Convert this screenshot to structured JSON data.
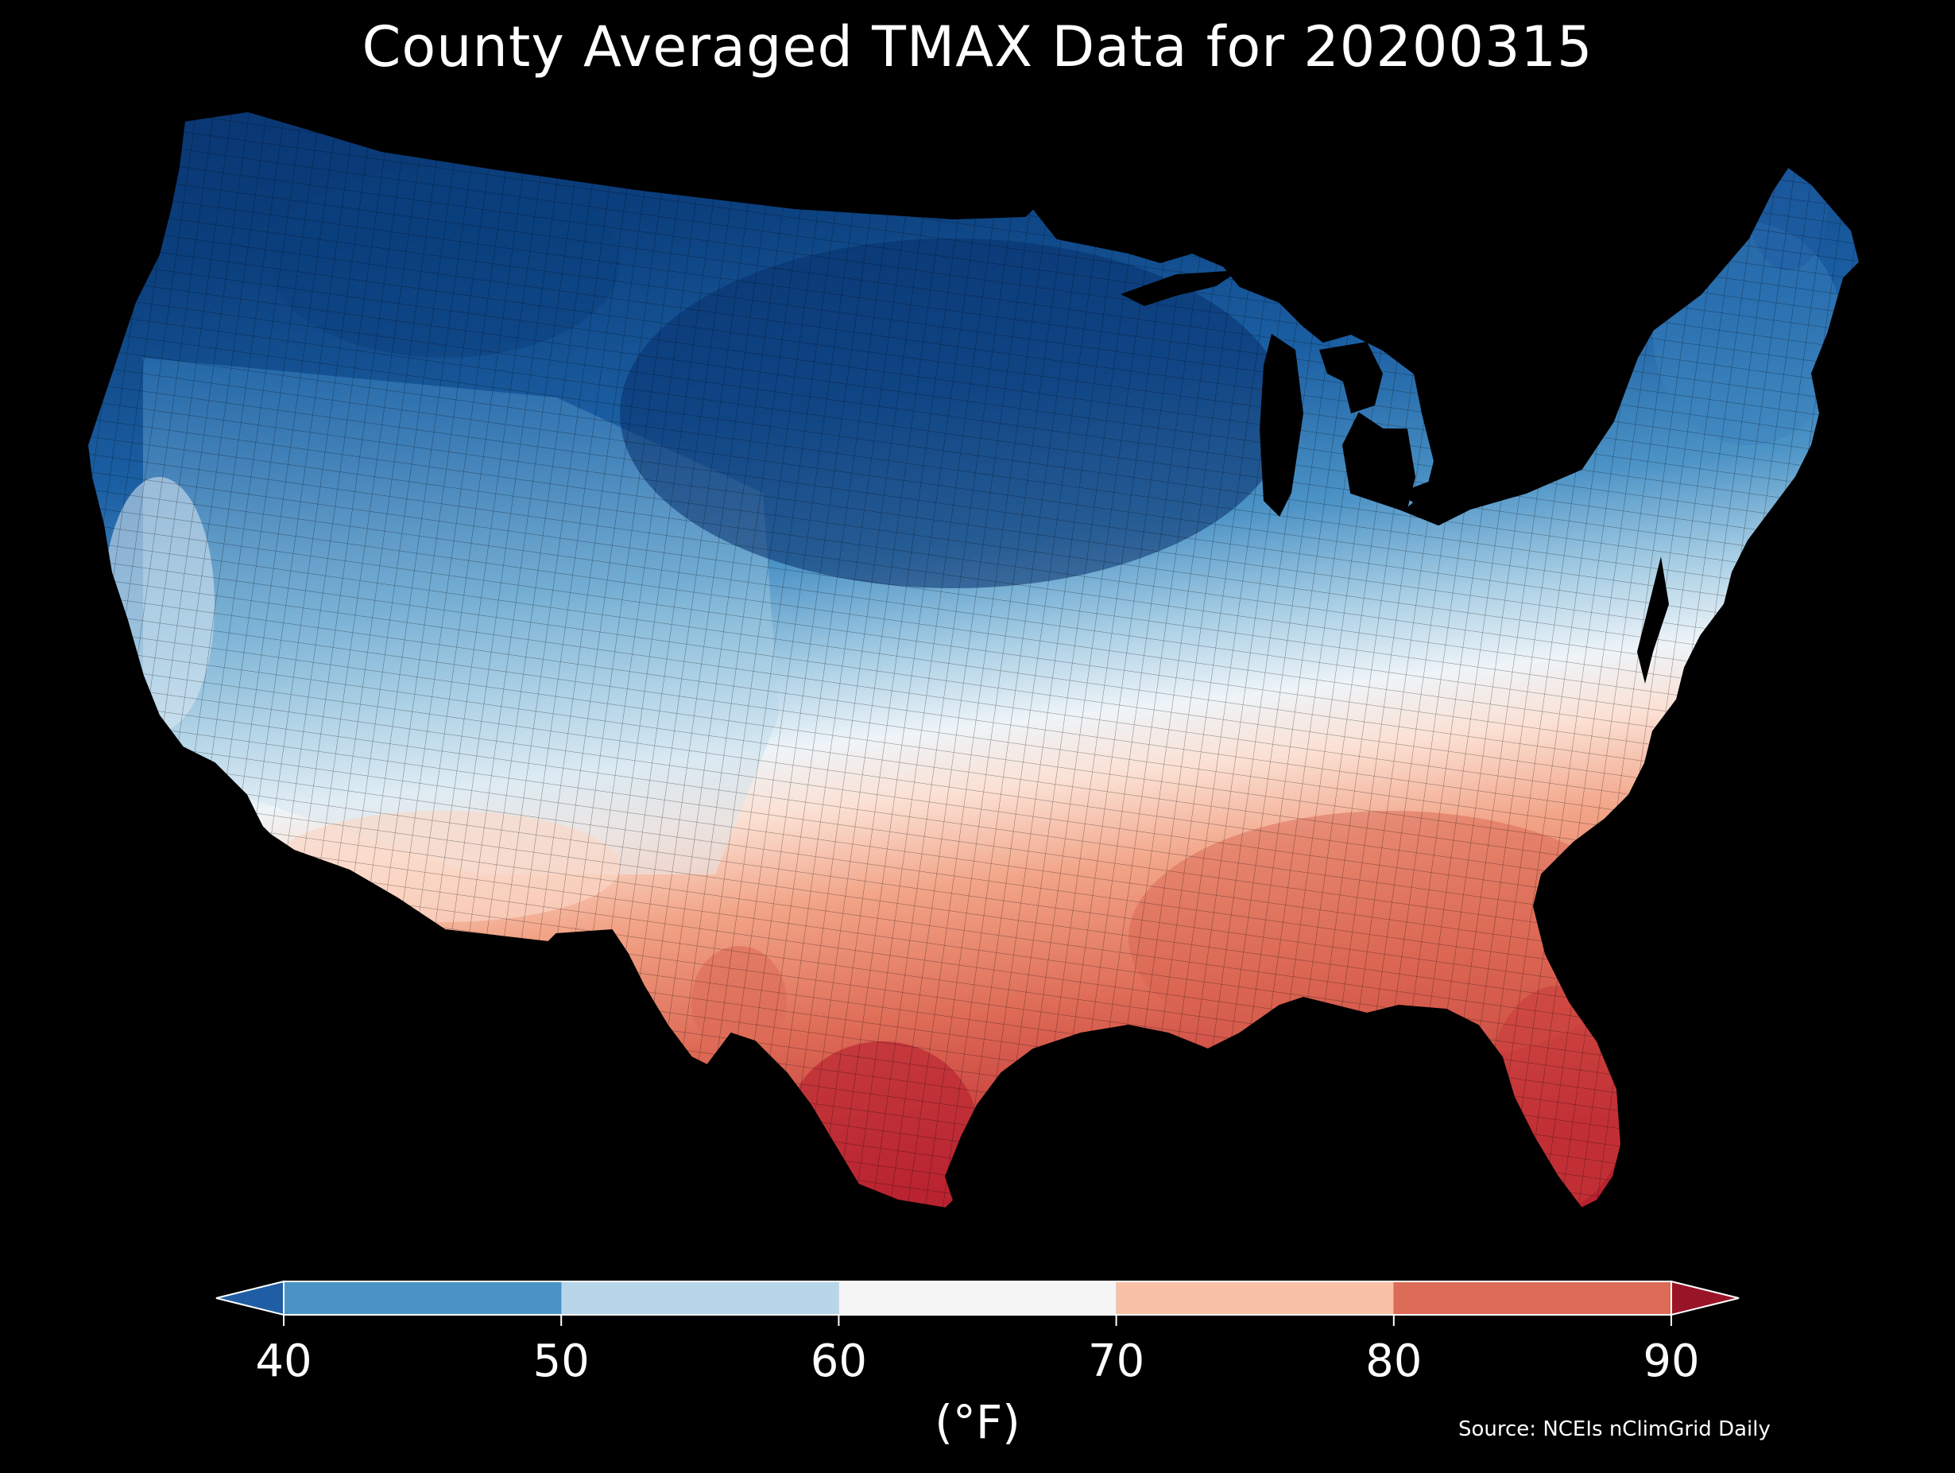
{
  "title": "County Averaged TMAX Data for 20200315",
  "colorbar": {
    "ticks": [
      "40",
      "50",
      "60",
      "70",
      "80",
      "90"
    ],
    "unit": "(°F)",
    "bins": [
      {
        "color": "#4a93c7"
      },
      {
        "color": "#b7d6e9"
      },
      {
        "color": "#f5f5f5"
      },
      {
        "color": "#f9c1a6"
      },
      {
        "color": "#dc6b57"
      }
    ],
    "under_color": "#1f5ea4",
    "over_color": "#9a1428"
  },
  "source": "Source: NCEIs nClimGrid Daily",
  "colors": {
    "background": "#000000",
    "deep_blue": "#08306b",
    "mid_blue": "#2c74b4",
    "light_blue": "#9ecae1",
    "white": "#f2f2f2",
    "light_red": "#f7b196",
    "red": "#d6604d",
    "dark_red": "#b2182b"
  }
}
